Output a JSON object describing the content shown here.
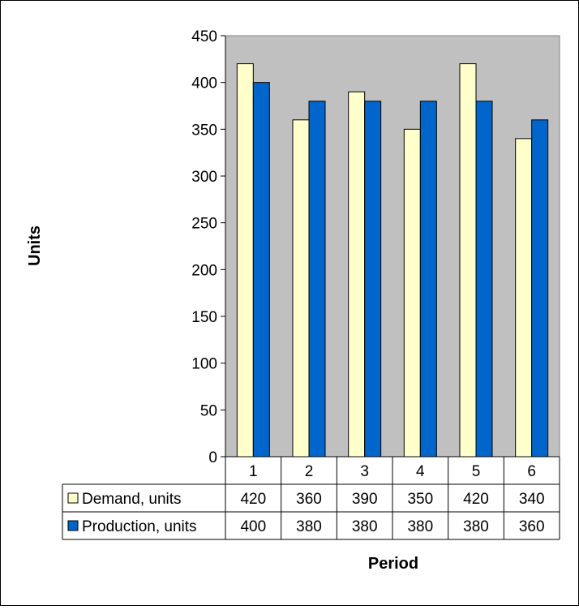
{
  "chart_data": {
    "type": "bar",
    "title": "",
    "xlabel": "Period",
    "ylabel": "Units",
    "categories": [
      "1",
      "2",
      "3",
      "4",
      "5",
      "6"
    ],
    "series": [
      {
        "name": "Demand, units",
        "values": [
          420,
          360,
          390,
          350,
          420,
          340
        ],
        "color": "#FFFFCC"
      },
      {
        "name": "Production, units",
        "values": [
          400,
          380,
          380,
          380,
          380,
          360
        ],
        "color": "#0066CC"
      }
    ],
    "ylim": [
      0,
      450
    ],
    "yticks": [
      "0",
      "50",
      "100",
      "150",
      "200",
      "250",
      "300",
      "350",
      "400",
      "450"
    ],
    "plot_background": "#C0C0C0",
    "grid": false,
    "legend": "data-table-left",
    "data_table": true
  }
}
